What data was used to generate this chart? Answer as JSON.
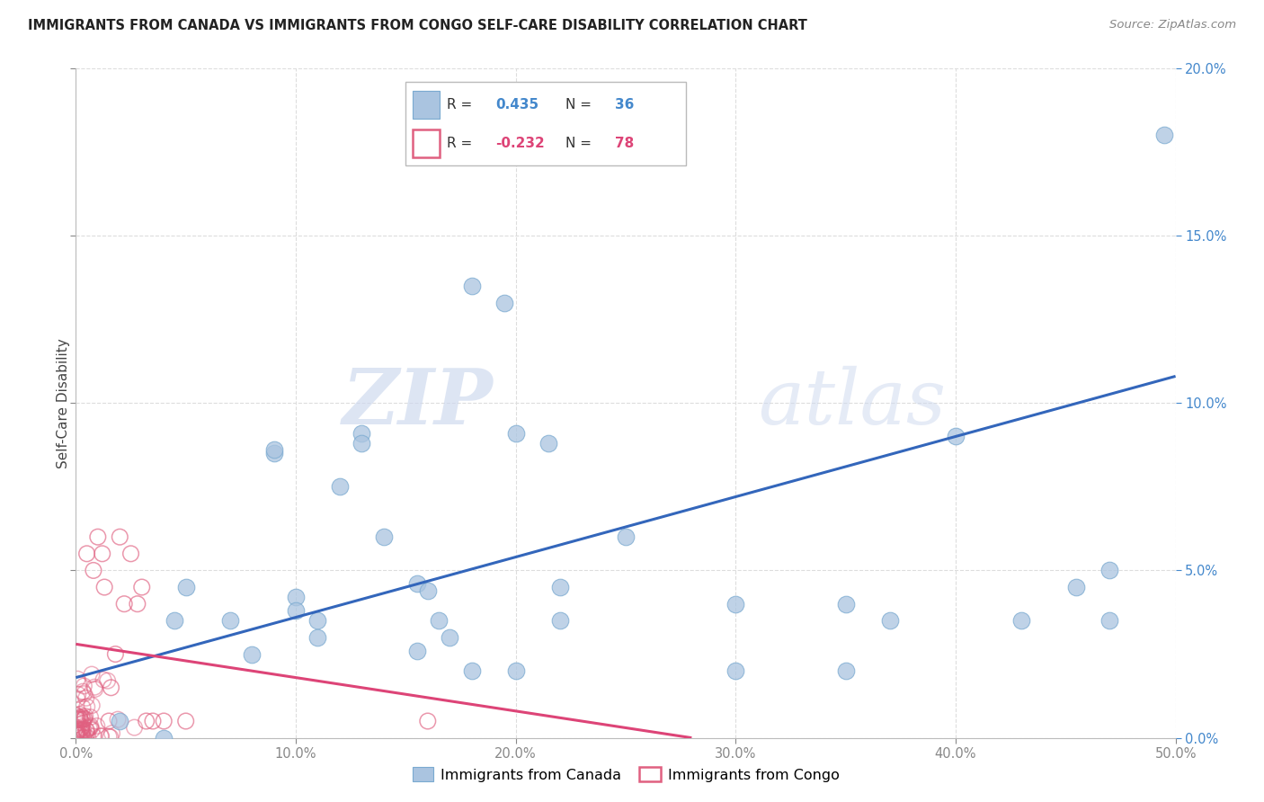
{
  "title": "IMMIGRANTS FROM CANADA VS IMMIGRANTS FROM CONGO SELF-CARE DISABILITY CORRELATION CHART",
  "source": "Source: ZipAtlas.com",
  "ylabel": "Self-Care Disability",
  "xlabel_canada": "Immigrants from Canada",
  "xlabel_congo": "Immigrants from Congo",
  "xlim": [
    0.0,
    0.5
  ],
  "ylim": [
    0.0,
    0.2
  ],
  "xticks": [
    0.0,
    0.1,
    0.2,
    0.3,
    0.4,
    0.5
  ],
  "yticks": [
    0.0,
    0.05,
    0.1,
    0.15,
    0.2
  ],
  "canada_color": "#aac4e0",
  "canada_edge": "#7aaad0",
  "congo_color": "#f0a0b8",
  "congo_edge": "#e06080",
  "canada_line_color": "#3366bb",
  "congo_line_color": "#dd4477",
  "right_axis_color": "#4488cc",
  "canada_scatter_x": [
    0.02,
    0.04,
    0.05,
    0.07,
    0.08,
    0.09,
    0.09,
    0.1,
    0.11,
    0.12,
    0.13,
    0.13,
    0.14,
    0.155,
    0.16,
    0.17,
    0.18,
    0.195,
    0.2,
    0.215,
    0.22,
    0.25,
    0.3,
    0.35,
    0.4,
    0.43,
    0.455,
    0.47
  ],
  "canada_scatter_y": [
    0.005,
    0.0,
    0.045,
    0.035,
    0.025,
    0.085,
    0.086,
    0.042,
    0.035,
    0.075,
    0.091,
    0.088,
    0.06,
    0.046,
    0.044,
    0.03,
    0.135,
    0.13,
    0.091,
    0.088,
    0.045,
    0.06,
    0.04,
    0.04,
    0.09,
    0.035,
    0.045,
    0.05
  ],
  "canada_scatter_x2": [
    0.045,
    0.1,
    0.11,
    0.155,
    0.165,
    0.18,
    0.2,
    0.22,
    0.3,
    0.35,
    0.37,
    0.47,
    0.495
  ],
  "canada_scatter_y2": [
    0.035,
    0.038,
    0.03,
    0.026,
    0.035,
    0.02,
    0.02,
    0.035,
    0.02,
    0.02,
    0.035,
    0.035,
    0.18
  ],
  "canada_line_x": [
    0.0,
    0.5
  ],
  "canada_line_y": [
    0.018,
    0.108
  ],
  "congo_line_x": [
    0.0,
    0.28
  ],
  "congo_line_y": [
    0.028,
    0.0
  ],
  "watermark_zip": "ZIP",
  "watermark_atlas": "atlas",
  "background_color": "#ffffff",
  "grid_color": "#dddddd"
}
